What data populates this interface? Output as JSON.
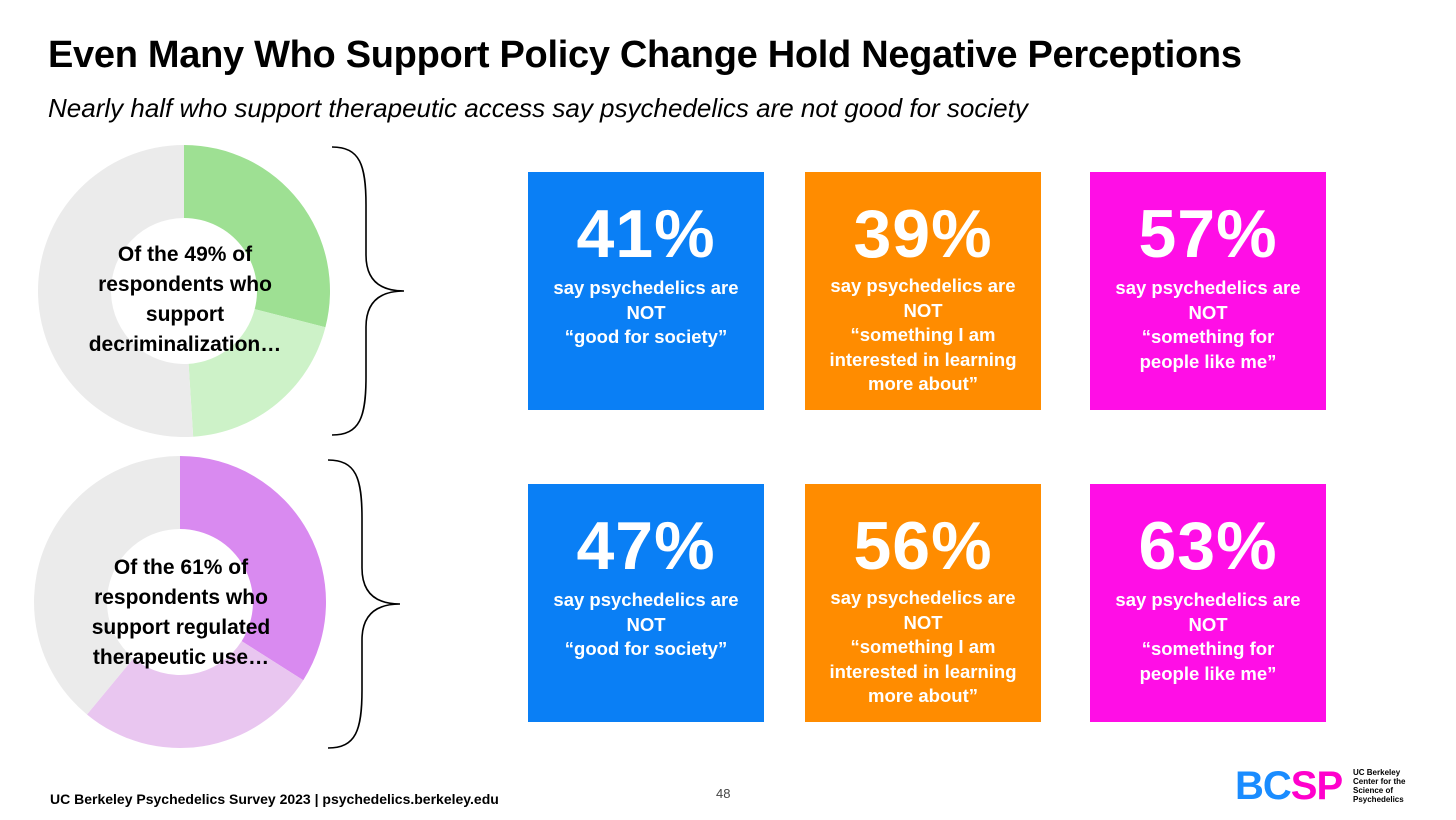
{
  "title": "Even Many Who Support Policy Change Hold Negative Perceptions",
  "subtitle": "Nearly half who support therapeutic access say psychedelics are not good for society",
  "colors": {
    "blue": "#0a7ff5",
    "orange": "#ff8c00",
    "magenta": "#ff0ee6",
    "green_dark": "#9ee093",
    "green_light": "#cdf2c8",
    "purple_dark": "#d98af0",
    "purple_light": "#e9c6f0",
    "gray": "#ebebeb"
  },
  "chart_data": [
    {
      "type": "pie",
      "label": "Of the 49% of respondents who support decriminalization…",
      "slices": [
        {
          "value": 29,
          "color": "#9ee093"
        },
        {
          "value": 20,
          "color": "#cdf2c8"
        },
        {
          "value": 51,
          "color": "#ebebeb"
        }
      ]
    },
    {
      "type": "pie",
      "label": "Of the 61% of respondents who support regulated therapeutic use…",
      "slices": [
        {
          "value": 34,
          "color": "#d98af0"
        },
        {
          "value": 27,
          "color": "#e9c6f0"
        },
        {
          "value": 39,
          "color": "#ebebeb"
        }
      ]
    }
  ],
  "cards": [
    {
      "pct": "41%",
      "text": "say psychedelics are\nNOT\n“good for society”",
      "color": "#0a7ff5"
    },
    {
      "pct": "39%",
      "text": "say psychedelics are\nNOT\n“something I am\ninterested in learning\nmore about”",
      "color": "#ff8c00"
    },
    {
      "pct": "57%",
      "text": "say psychedelics are\nNOT\n“something for\npeople like me”",
      "color": "#ff0ee6"
    },
    {
      "pct": "47%",
      "text": "say psychedelics are\nNOT\n“good for society”",
      "color": "#0a7ff5"
    },
    {
      "pct": "56%",
      "text": "say psychedelics are\nNOT\n“something I am\ninterested in learning\nmore about”",
      "color": "#ff8c00"
    },
    {
      "pct": "63%",
      "text": "say psychedelics are\nNOT\n“something for\npeople like me”",
      "color": "#ff0ee6"
    }
  ],
  "footer": "UC Berkeley Psychedelics Survey 2023 | psychedelics.berkeley.edu",
  "page_number": "48",
  "logo": {
    "letters": [
      "B",
      "C",
      "S",
      "P"
    ],
    "text": "UC Berkeley Center for the Science of Psychedelics"
  }
}
